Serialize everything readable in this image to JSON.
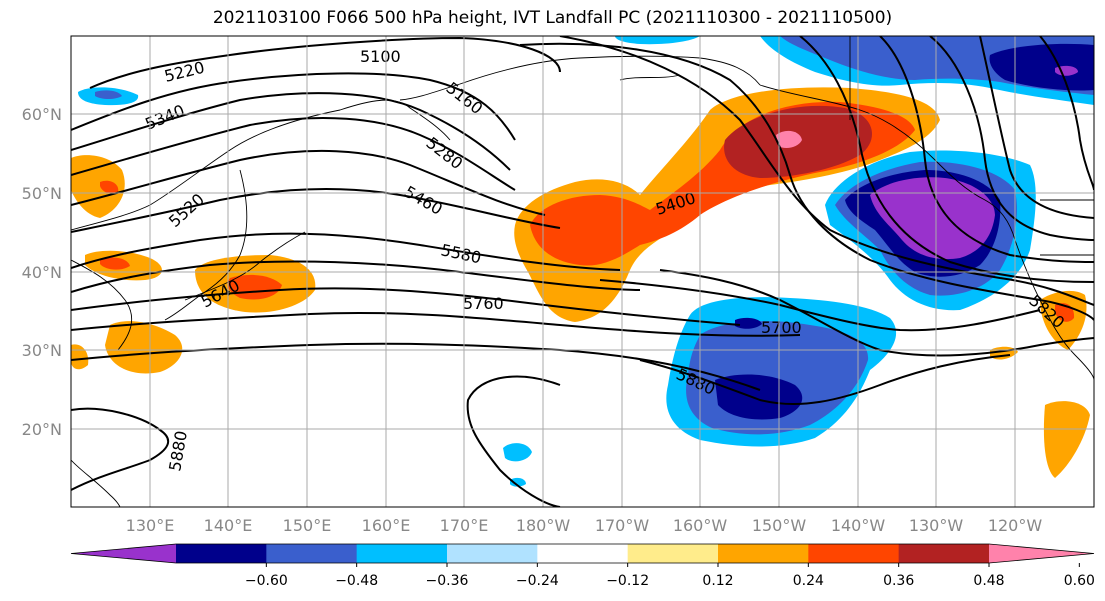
{
  "title": "2021103100 F066 500 hPa height, IVT Landfall PC (2021110300 - 2021110500)",
  "map": {
    "lat_labels": [
      "60°N",
      "50°N",
      "40°N",
      "30°N",
      "20°N"
    ],
    "lon_labels": [
      "130°E",
      "140°E",
      "150°E",
      "160°E",
      "170°E",
      "180°W",
      "170°W",
      "160°W",
      "150°W",
      "140°W",
      "130°W",
      "120°W"
    ],
    "contour_labels": [
      "5100",
      "5220",
      "5160",
      "5340",
      "5280",
      "5520",
      "5460",
      "5400",
      "5580",
      "5640",
      "5760",
      "5700",
      "5820",
      "5880",
      "5880"
    ]
  },
  "colorbar": {
    "colors": [
      "#9932CC",
      "#00008B",
      "#3A5FCD",
      "#00BFFF",
      "#B0E2FF",
      "#FFFFFF",
      "#FFEC8B",
      "#FFA500",
      "#FF4500",
      "#B22222",
      "#FF82AB"
    ],
    "tick_labels": [
      "-0.60",
      "-0.48",
      "-0.36",
      "-0.24",
      "-0.12",
      "0.12",
      "0.24",
      "0.36",
      "0.48",
      "0.60"
    ]
  }
}
